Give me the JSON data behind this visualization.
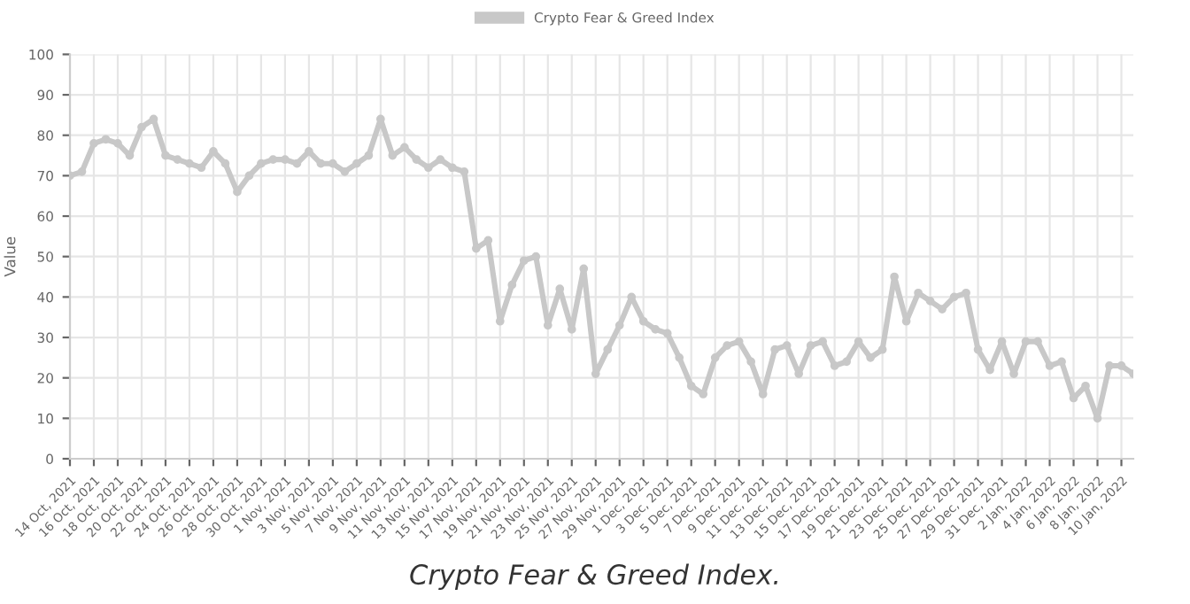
{
  "chart_data": {
    "type": "line",
    "categories": [
      "14 Oct, 2021",
      null,
      "16 Oct, 2021",
      null,
      "18 Oct, 2021",
      null,
      "20 Oct, 2021",
      null,
      "22 Oct, 2021",
      null,
      "24 Oct, 2021",
      null,
      "26 Oct, 2021",
      null,
      "28 Oct, 2021",
      null,
      "30 Oct, 2021",
      null,
      "1 Nov, 2021",
      null,
      "3 Nov, 2021",
      null,
      "5 Nov, 2021",
      null,
      "7 Nov, 2021",
      null,
      "9 Nov, 2021",
      null,
      "11 Nov, 2021",
      null,
      "13 Nov, 2021",
      null,
      "15 Nov, 2021",
      null,
      "17 Nov, 2021",
      null,
      "19 Nov, 2021",
      null,
      "21 Nov, 2021",
      null,
      "23 Nov, 2021",
      null,
      "25 Nov, 2021",
      null,
      "27 Nov, 2021",
      null,
      "29 Nov, 2021",
      null,
      "1 Dec, 2021",
      null,
      "3 Dec, 2021",
      null,
      "5 Dec, 2021",
      null,
      "7 Dec, 2021",
      null,
      "9 Dec, 2021",
      null,
      "11 Dec, 2021",
      null,
      "13 Dec, 2021",
      null,
      "15 Dec, 2021",
      null,
      "17 Dec, 2021",
      null,
      "19 Dec, 2021",
      null,
      "21 Dec, 2021",
      null,
      "23 Dec, 2021",
      null,
      "25 Dec, 2021",
      null,
      "27 Dec, 2021",
      null,
      "29 Dec, 2021",
      null,
      "31 Dec, 2021",
      null,
      "2 Jan, 2022",
      null,
      "4 Jan, 2022",
      null,
      "6 Jan, 2022",
      null,
      "8 Jan, 2022",
      null,
      "10 Jan, 2022",
      null
    ],
    "series": [
      {
        "name": "Crypto Fear & Greed Index",
        "color": "#c8c8c8",
        "values": [
          70,
          71,
          78,
          79,
          78,
          75,
          82,
          84,
          75,
          74,
          73,
          72,
          76,
          73,
          66,
          70,
          73,
          74,
          74,
          73,
          76,
          73,
          73,
          71,
          73,
          75,
          84,
          75,
          77,
          74,
          72,
          74,
          72,
          71,
          52,
          54,
          34,
          43,
          49,
          50,
          33,
          42,
          32,
          47,
          21,
          27,
          33,
          40,
          34,
          32,
          31,
          25,
          18,
          16,
          25,
          28,
          29,
          24,
          16,
          27,
          28,
          21,
          28,
          29,
          23,
          24,
          29,
          25,
          27,
          45,
          34,
          41,
          39,
          37,
          40,
          41,
          27,
          22,
          29,
          21,
          29,
          29,
          23,
          24,
          15,
          18,
          10,
          23,
          23,
          21
        ]
      }
    ],
    "ylabel": "Value",
    "ylim": [
      0,
      100
    ],
    "yticks": [
      0,
      10,
      20,
      30,
      40,
      50,
      60,
      70,
      80,
      90,
      100
    ],
    "grid": true,
    "legend": "top",
    "marker": "circle",
    "line_style": "solid",
    "annotations": [
      "Crypto Fear & Greed Index."
    ]
  }
}
